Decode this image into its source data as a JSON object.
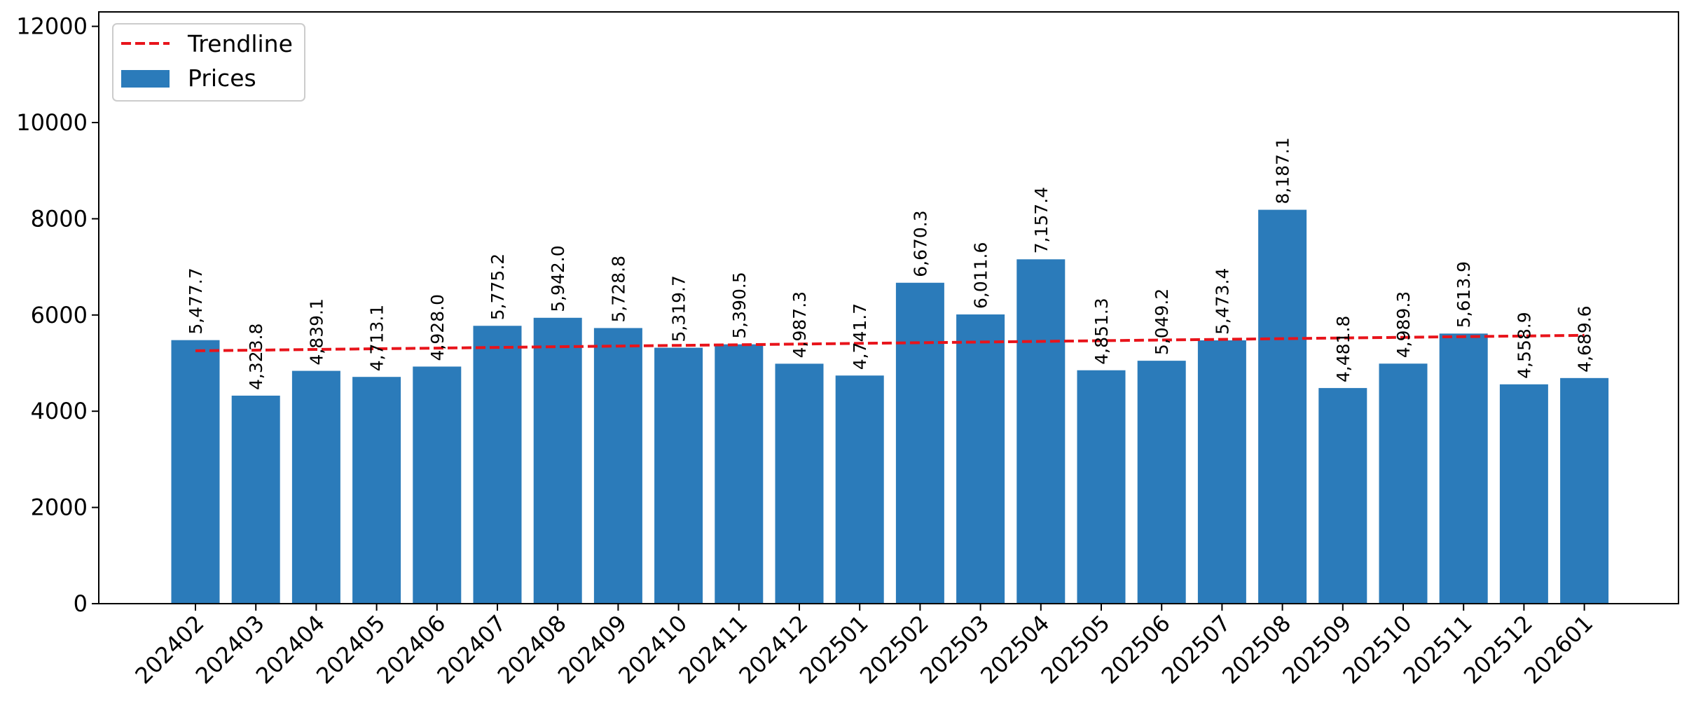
{
  "chart_data": {
    "type": "bar",
    "title": "",
    "xlabel": "",
    "ylabel": "",
    "ylim": [
      0,
      12300
    ],
    "yticks": [
      0,
      2000,
      4000,
      6000,
      8000,
      10000,
      12000
    ],
    "grid": false,
    "legend_position": "top-left",
    "categories": [
      "202402",
      "202403",
      "202404",
      "202405",
      "202406",
      "202407",
      "202408",
      "202409",
      "202410",
      "202411",
      "202412",
      "202501",
      "202502",
      "202503",
      "202504",
      "202505",
      "202506",
      "202507",
      "202508",
      "202509",
      "202510",
      "202511",
      "202512",
      "202601"
    ],
    "series": [
      {
        "name": "Prices",
        "type": "bar",
        "color": "#2b7bba",
        "values": [
          5477.7,
          4323.8,
          4839.1,
          4713.1,
          4928.0,
          5775.2,
          5942.0,
          5728.8,
          5319.7,
          5390.5,
          4987.3,
          4741.7,
          6670.3,
          6011.6,
          7157.4,
          4851.3,
          5049.2,
          5473.4,
          8187.1,
          4481.8,
          4989.3,
          5613.9,
          4558.9,
          4689.6
        ],
        "labels": [
          "5,477.7",
          "4,323.8",
          "4,839.1",
          "4,713.1",
          "4,928.0",
          "5,775.2",
          "5,942.0",
          "5,728.8",
          "5,319.7",
          "5,390.5",
          "4,987.3",
          "4,741.7",
          "6,670.3",
          "6,011.6",
          "7,157.4",
          "4,851.3",
          "5,049.2",
          "5,473.4",
          "8,187.1",
          "4,481.8",
          "4,989.3",
          "5,613.9",
          "4,558.9",
          "4,689.6"
        ]
      },
      {
        "name": "Trendline",
        "type": "line",
        "style": "dashed",
        "color": "#e8141b",
        "values": [
          5256,
          5270,
          5284,
          5298,
          5312,
          5326,
          5340,
          5354,
          5368,
          5382,
          5396,
          5410,
          5424,
          5438,
          5452,
          5466,
          5480,
          5494,
          5508,
          5522,
          5536,
          5550,
          5564,
          5578
        ]
      }
    ]
  }
}
